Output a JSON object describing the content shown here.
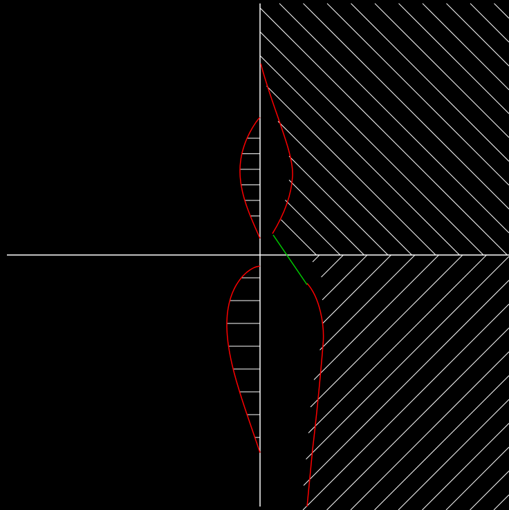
{
  "diagram": {
    "background_color": "#000000",
    "axis_color": "#ffffff",
    "hatch_color": "#ffffff",
    "curve_color": "#ff0000",
    "accent_color": "#00cc00",
    "upper_profile_hatch_count": 6,
    "lower_profile_hatch_count": 8,
    "upper_region_hatch_count": 22,
    "lower_region_hatch_count": 17
  }
}
